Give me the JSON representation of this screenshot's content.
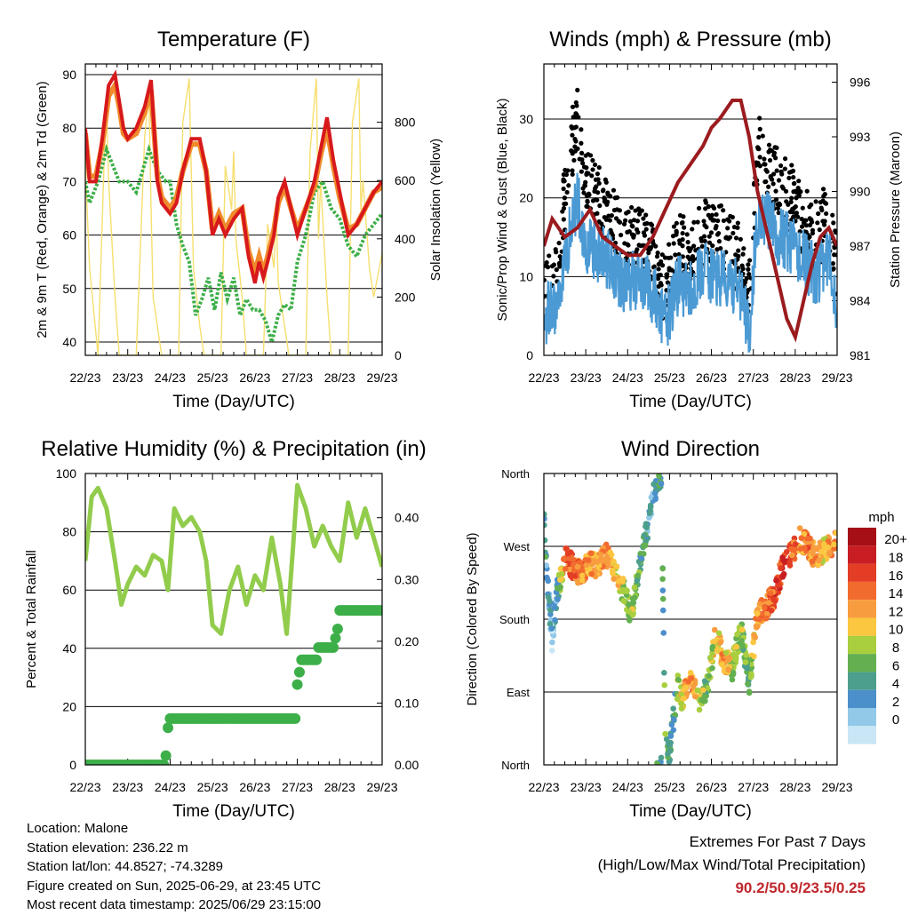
{
  "x_ticks": [
    "22/23",
    "23/23",
    "24/23",
    "25/23",
    "26/23",
    "27/23",
    "28/23",
    "29/23"
  ],
  "x_label": "Time (Day/UTC)",
  "station": {
    "location": "Location: Malone",
    "elevation": "Station elevation: 236.22 m",
    "latlon": "Station lat/lon: 44.8527; -74.3289",
    "created": "Figure created on Sun, 2025-06-29, at 23:45 UTC",
    "recent": "Most recent data timestamp: 2025/06/29 23:15:00"
  },
  "extremes": {
    "title": "Extremes For Past 7 Days",
    "subtitle": "(High/Low/Max Wind/Total Precipitation)",
    "values": "90.2/50.9/23.5/0.25"
  },
  "colors": {
    "temp2m": "#d7191c",
    "temp9m": "#f08a2b",
    "dewpoint": "#3daf49",
    "solar": "#f6df6f",
    "gust": "#000000",
    "sonic": "#4b9ad4",
    "pressure": "#9b1b1e",
    "rh": "#92cc4c",
    "precip": "#3daf49"
  },
  "chart_data": [
    {
      "type": "line",
      "title": "Temperature (F)",
      "xlabel": "Time (Day/UTC)",
      "ylabel": "2m & 9m T (Red, Orange) & 2m Td (Green)",
      "ylabel_right": "Solar Insolation (Yellow)",
      "x_range": [
        22,
        29
      ],
      "ylim": [
        37.5,
        92
      ],
      "ylim_right": [
        0,
        1000
      ],
      "yticks": [
        40,
        50,
        60,
        70,
        80,
        90
      ],
      "yticks_right": [
        0,
        200,
        400,
        600,
        800
      ],
      "series": [
        {
          "key": "t2m",
          "x": [
            22.0,
            22.1,
            22.25,
            22.4,
            22.55,
            22.7,
            22.8,
            22.9,
            23.0,
            23.2,
            23.4,
            23.55,
            23.7,
            23.8,
            23.9,
            24.0,
            24.15,
            24.3,
            24.5,
            24.7,
            24.85,
            25.0,
            25.15,
            25.3,
            25.5,
            25.7,
            25.85,
            26.0,
            26.1,
            26.2,
            26.3,
            26.45,
            26.55,
            26.7,
            26.85,
            27.0,
            27.2,
            27.4,
            27.55,
            27.7,
            27.85,
            28.0,
            28.2,
            28.4,
            28.6,
            28.8,
            29.0
          ],
          "y": [
            80,
            70,
            70,
            78,
            88,
            90,
            85,
            80,
            78,
            80,
            84,
            89,
            70,
            66,
            65,
            64,
            66,
            72,
            78,
            78,
            72,
            60,
            63,
            60,
            63,
            65,
            56,
            51,
            55,
            52,
            55,
            60,
            67,
            70,
            65,
            60,
            65,
            70,
            76,
            82,
            74,
            68,
            60,
            62,
            65,
            68,
            70
          ]
        },
        {
          "key": "t9m",
          "x": [
            22.0,
            22.1,
            22.25,
            22.4,
            22.55,
            22.7,
            22.8,
            22.9,
            23.0,
            23.2,
            23.4,
            23.55,
            23.7,
            23.8,
            23.9,
            24.0,
            24.15,
            24.3,
            24.5,
            24.7,
            24.85,
            25.0,
            25.15,
            25.3,
            25.5,
            25.7,
            25.85,
            26.0,
            26.1,
            26.2,
            26.3,
            26.45,
            26.55,
            26.7,
            26.85,
            27.0,
            27.2,
            27.4,
            27.55,
            27.7,
            27.85,
            28.0,
            28.2,
            28.4,
            28.6,
            28.8,
            29.0
          ],
          "y": [
            79,
            71,
            71,
            77,
            86,
            88,
            84,
            79,
            78,
            79,
            83,
            87,
            71,
            67,
            66,
            65,
            67,
            72,
            77,
            77,
            72,
            61,
            64,
            61,
            64,
            65,
            57,
            53,
            56,
            53,
            56,
            61,
            66,
            69,
            65,
            61,
            65,
            69,
            75,
            80,
            73,
            67,
            61,
            62,
            65,
            68,
            69
          ]
        },
        {
          "key": "td2m",
          "x": [
            22.0,
            22.1,
            22.3,
            22.5,
            22.65,
            22.8,
            23.0,
            23.2,
            23.35,
            23.5,
            23.7,
            23.9,
            24.0,
            24.15,
            24.3,
            24.45,
            24.6,
            24.75,
            24.9,
            25.05,
            25.2,
            25.35,
            25.5,
            25.65,
            25.8,
            25.95,
            26.1,
            26.25,
            26.4,
            26.55,
            26.7,
            26.85,
            27.0,
            27.2,
            27.4,
            27.6,
            27.8,
            28.0,
            28.2,
            28.4,
            28.6,
            28.8,
            29.0
          ],
          "y": [
            70,
            66,
            70,
            76,
            73,
            70,
            70,
            68,
            72,
            76,
            72,
            70,
            70,
            62,
            58,
            55,
            45,
            48,
            52,
            46,
            53,
            48,
            52,
            45,
            48,
            46,
            46,
            44,
            40,
            45,
            47,
            46,
            55,
            60,
            68,
            70,
            65,
            63,
            58,
            56,
            60,
            62,
            64
          ]
        },
        {
          "key": "solar",
          "axis": "right",
          "x": [
            22.0,
            22.1,
            22.3,
            22.45,
            22.5,
            22.55,
            22.7,
            22.8,
            23.0,
            23.2,
            23.4,
            23.5,
            23.55,
            23.6,
            23.8,
            24.0,
            24.2,
            24.3,
            24.45,
            24.5,
            24.55,
            24.7,
            24.8,
            25.0,
            25.2,
            25.3,
            25.45,
            25.5,
            25.55,
            25.7,
            25.8,
            26.0,
            26.2,
            26.3,
            26.45,
            26.5,
            26.55,
            26.7,
            26.8,
            27.0,
            27.2,
            27.3,
            27.45,
            27.5,
            27.55,
            27.7,
            27.8,
            28.0,
            28.2,
            28.3,
            28.45,
            28.5,
            28.55,
            28.7,
            28.8,
            29.0
          ],
          "y": [
            650,
            300,
            0,
            700,
            850,
            600,
            200,
            0,
            0,
            0,
            750,
            900,
            500,
            200,
            0,
            0,
            0,
            800,
            950,
            620,
            300,
            100,
            0,
            0,
            0,
            650,
            500,
            700,
            400,
            200,
            0,
            0,
            0,
            450,
            300,
            500,
            250,
            100,
            0,
            0,
            0,
            700,
            950,
            400,
            600,
            200,
            0,
            0,
            0,
            800,
            950,
            500,
            600,
            300,
            200,
            350
          ]
        }
      ]
    },
    {
      "type": "scatter",
      "title": "Winds (mph) & Pressure (mb)",
      "xlabel": "Time (Day/UTC)",
      "ylabel": "Sonic/Prop Wind & Gust (Blue, Black)",
      "ylabel_right": "Station Pressure (Maroon)",
      "x_range": [
        22,
        29
      ],
      "ylim": [
        0,
        37
      ],
      "ylim_right": [
        981,
        997
      ],
      "yticks": [
        0,
        10,
        20,
        30
      ],
      "yticks_right": [
        981,
        984,
        987,
        990,
        993,
        996
      ],
      "series": [
        {
          "key": "gust",
          "x": [
            22.0,
            22.3,
            22.6,
            22.8,
            23.0,
            23.3,
            23.6,
            23.8,
            24.0,
            24.3,
            24.6,
            24.9,
            25.2,
            25.5,
            25.8,
            26.1,
            26.4,
            26.7,
            26.9,
            27.1,
            27.3,
            27.6,
            27.9,
            28.2,
            28.5,
            28.8,
            29.0
          ],
          "y": [
            8,
            10,
            25,
            30,
            22,
            20,
            18,
            15,
            14,
            15,
            12,
            8,
            14,
            12,
            16,
            15,
            14,
            12,
            8,
            26,
            25,
            22,
            20,
            17,
            15,
            18,
            10
          ]
        },
        {
          "key": "sonic",
          "x": [
            22.0,
            22.3,
            22.6,
            22.8,
            23.0,
            23.3,
            23.6,
            23.8,
            24.0,
            24.3,
            24.6,
            24.9,
            25.2,
            25.5,
            25.8,
            26.1,
            26.4,
            26.7,
            26.9,
            27.1,
            27.3,
            27.6,
            27.9,
            28.2,
            28.5,
            28.8,
            29.0
          ],
          "y": [
            5,
            6,
            15,
            20,
            14,
            13,
            12,
            10,
            9,
            10,
            8,
            4,
            9,
            8,
            11,
            10,
            9,
            8,
            3,
            18,
            17,
            15,
            14,
            12,
            10,
            13,
            6
          ]
        },
        {
          "key": "pressure",
          "axis": "right",
          "x": [
            22.0,
            22.2,
            22.5,
            22.8,
            23.1,
            23.4,
            23.7,
            24.0,
            24.3,
            24.6,
            24.9,
            25.2,
            25.5,
            25.8,
            26.0,
            26.2,
            26.5,
            26.7,
            26.9,
            27.1,
            27.3,
            27.5,
            27.8,
            28.0,
            28.2,
            28.4,
            28.6,
            28.8,
            29.0
          ],
          "y": [
            987,
            988.5,
            987.5,
            988,
            989,
            987.5,
            987,
            986.5,
            986.5,
            987.5,
            989,
            990.5,
            991.5,
            992.5,
            993.5,
            994,
            995,
            995,
            993,
            990,
            988,
            986,
            983,
            982,
            984,
            986,
            987.5,
            988,
            987
          ]
        }
      ]
    },
    {
      "type": "line",
      "title": "Relative Humidity (%) & Precipitation (in)",
      "xlabel": "Time (Day/UTC)",
      "ylabel": "Percent & Total Rainfall",
      "x_range": [
        22,
        29
      ],
      "ylim": [
        0,
        100
      ],
      "ylim_right": [
        0,
        0.4715
      ],
      "yticks": [
        0,
        20,
        40,
        60,
        80,
        100
      ],
      "yticks_right": [
        "0.00",
        "0.10",
        "0.20",
        "0.30",
        "0.40"
      ],
      "series": [
        {
          "key": "rh",
          "x": [
            22.0,
            22.15,
            22.3,
            22.5,
            22.7,
            22.85,
            23.0,
            23.2,
            23.4,
            23.6,
            23.8,
            23.95,
            24.1,
            24.3,
            24.5,
            24.7,
            24.85,
            25.0,
            25.2,
            25.4,
            25.6,
            25.8,
            26.0,
            26.2,
            26.4,
            26.6,
            26.75,
            26.9,
            27.0,
            27.2,
            27.4,
            27.6,
            27.8,
            28.0,
            28.2,
            28.4,
            28.6,
            28.8,
            29.0
          ],
          "y": [
            70,
            92,
            95,
            88,
            70,
            55,
            62,
            68,
            65,
            72,
            70,
            60,
            88,
            82,
            85,
            80,
            70,
            48,
            45,
            60,
            68,
            55,
            65,
            60,
            78,
            62,
            45,
            75,
            96,
            88,
            75,
            82,
            75,
            70,
            90,
            78,
            88,
            78,
            68
          ]
        },
        {
          "key": "precip",
          "axis": "right",
          "x": [
            22.0,
            23.88,
            23.92,
            23.95,
            24.0,
            26.95,
            27.0,
            27.05,
            27.1,
            27.45,
            27.5,
            27.85,
            27.95,
            28.0,
            28.95,
            29.0
          ],
          "y": [
            0,
            0,
            0.03,
            0.06,
            0.075,
            0.075,
            0.13,
            0.15,
            0.17,
            0.17,
            0.19,
            0.19,
            0.22,
            0.25,
            0.25,
            0.25
          ]
        }
      ]
    },
    {
      "type": "scatter",
      "title": "Wind Direction",
      "xlabel": "Time (Day/UTC)",
      "ylabel": "Direction (Colored By Speed)",
      "x_range": [
        22,
        29
      ],
      "ylim": [
        0,
        360
      ],
      "yticks": [
        "North",
        "East",
        "South",
        "West",
        "North"
      ],
      "colorbar": {
        "title": "mph",
        "labels": [
          "20+",
          "18",
          "16",
          "14",
          "12",
          "10",
          "8",
          "6",
          "4",
          "2",
          "0"
        ],
        "colors": [
          "#a50f15",
          "#c81e23",
          "#e33d26",
          "#f26b2e",
          "#f89d3f",
          "#fbc640",
          "#a9cf3f",
          "#64b050",
          "#4c9f8c",
          "#4b8fcb",
          "#92c8e8",
          "#c9e6f6"
        ]
      },
      "series": [
        {
          "key": "dir",
          "x": [
            22.0,
            22.1,
            22.2,
            22.3,
            22.5,
            22.7,
            22.9,
            23.1,
            23.3,
            23.5,
            23.7,
            23.9,
            24.1,
            24.3,
            24.5,
            24.6,
            24.7,
            24.8,
            24.9,
            25.0,
            25.1,
            25.2,
            25.3,
            25.5,
            25.7,
            25.9,
            26.1,
            26.3,
            26.5,
            26.7,
            26.9,
            27.1,
            27.3,
            27.5,
            27.7,
            27.9,
            28.1,
            28.3,
            28.5,
            28.7,
            28.9,
            29.0
          ],
          "y": [
            300,
            220,
            150,
            210,
            255,
            245,
            235,
            250,
            245,
            260,
            235,
            215,
            185,
            250,
            300,
            330,
            350,
            360,
            25,
            15,
            60,
            100,
            80,
            110,
            75,
            95,
            160,
            130,
            120,
            170,
            100,
            185,
            195,
            210,
            245,
            260,
            280,
            270,
            255,
            265,
            275,
            270
          ],
          "speed": [
            6,
            4,
            3,
            4,
            16,
            17,
            15,
            14,
            13,
            16,
            12,
            10,
            9,
            7,
            5,
            4,
            6,
            5,
            8,
            7,
            6,
            9,
            12,
            14,
            11,
            8,
            12,
            13,
            10,
            9,
            7,
            15,
            16,
            17,
            18,
            16,
            14,
            15,
            13,
            12,
            15,
            14
          ]
        }
      ]
    }
  ]
}
